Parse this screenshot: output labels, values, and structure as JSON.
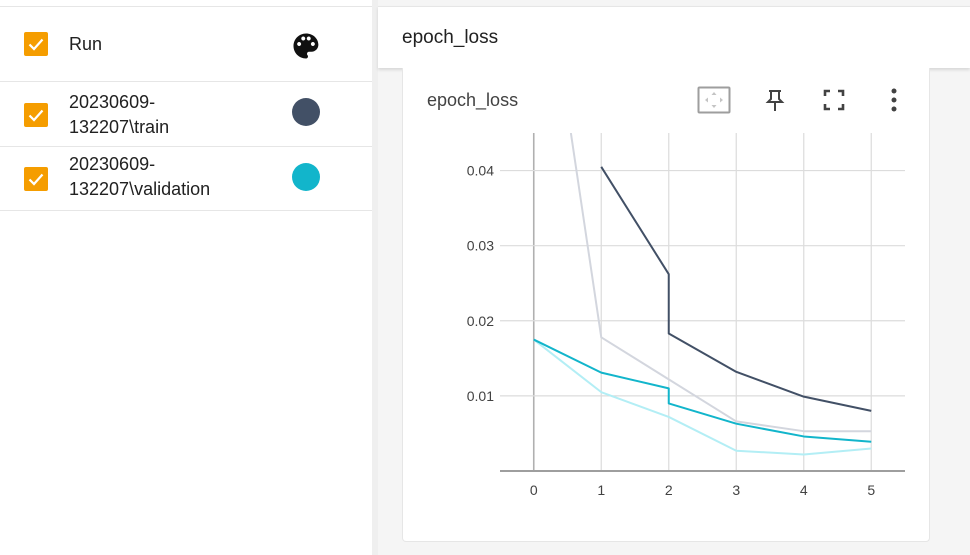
{
  "runs_pane": {
    "header_label": "Run",
    "icons": {
      "checkbox": "check-icon",
      "palette": "palette-icon"
    },
    "runs": [
      {
        "line1": "20230609-",
        "line2": "132207\\train",
        "color": "#425066"
      },
      {
        "line1": "20230609-",
        "line2": "132207\\validation",
        "color": "#12b5cb"
      }
    ],
    "checkbox_color": "#f59d00"
  },
  "group": {
    "title": "epoch_loss"
  },
  "card": {
    "title": "epoch_loss",
    "icons": [
      "fit-domain-icon",
      "pin-icon",
      "fullscreen-icon",
      "more-vert-icon"
    ]
  },
  "chart_data": {
    "type": "line",
    "x_ticks": [
      "0",
      "1",
      "2",
      "3",
      "4",
      "5"
    ],
    "y_ticks": [
      "0.01",
      "0.02",
      "0.03",
      "0.04"
    ],
    "xlim": [
      -0.5,
      5.5
    ],
    "ylim": [
      0,
      0.045
    ],
    "grid": true,
    "series": [
      {
        "name": "20230609-132207\\train (raw)",
        "color": "#d3d6de",
        "x": [
          0.55,
          1,
          2,
          3,
          4,
          5
        ],
        "y": [
          0.045,
          0.0178,
          0.0122,
          0.0066,
          0.0053,
          0.0053
        ]
      },
      {
        "name": "20230609-132207\\train",
        "color": "#425066",
        "x": [
          1,
          2,
          2,
          3,
          4,
          5
        ],
        "y": [
          0.0405,
          0.0262,
          0.0183,
          0.0132,
          0.0099,
          0.008
        ]
      },
      {
        "name": "20230609-132207\\validation (raw)",
        "color": "#b3eef5",
        "x": [
          0,
          1,
          2,
          3,
          4,
          5
        ],
        "y": [
          0.0175,
          0.0105,
          0.0072,
          0.0027,
          0.0022,
          0.003
        ]
      },
      {
        "name": "20230609-132207\\validation",
        "color": "#12b5cb",
        "x": [
          0,
          1,
          2,
          2,
          3,
          4,
          5
        ],
        "y": [
          0.0175,
          0.0131,
          0.011,
          0.009,
          0.0063,
          0.0046,
          0.0039
        ]
      }
    ]
  }
}
